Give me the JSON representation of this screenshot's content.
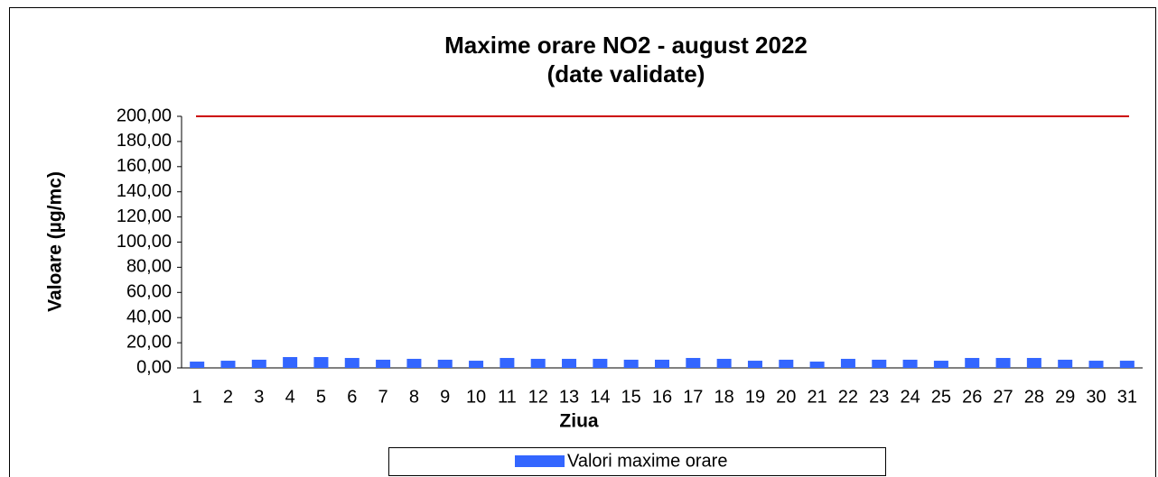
{
  "chart_data": {
    "type": "bar",
    "title": "Maxime orare NO2 -  august 2022",
    "subtitle": "(date validate)",
    "x_label": "Ziua",
    "y_label": "Valoare (µg/mc)",
    "categories": [
      "1",
      "2",
      "3",
      "4",
      "5",
      "6",
      "7",
      "8",
      "9",
      "10",
      "11",
      "12",
      "13",
      "14",
      "15",
      "16",
      "17",
      "18",
      "19",
      "20",
      "21",
      "22",
      "23",
      "24",
      "25",
      "26",
      "27",
      "28",
      "29",
      "30",
      "31"
    ],
    "series": [
      {
        "name": "Valori maxime orare",
        "color": "#3366ff",
        "values": [
          5.0,
          5.7,
          6.5,
          8.6,
          8.6,
          7.9,
          6.5,
          7.2,
          6.5,
          5.7,
          7.9,
          7.2,
          7.2,
          7.2,
          6.5,
          6.5,
          7.9,
          7.2,
          5.7,
          6.5,
          5.0,
          7.2,
          6.5,
          6.5,
          5.7,
          7.9,
          7.9,
          7.9,
          6.5,
          5.7,
          5.7
        ]
      }
    ],
    "reference_line": {
      "value": 200,
      "color": "#cc0000"
    },
    "ylim": [
      0,
      200
    ],
    "yticks": [
      {
        "value": 0,
        "label": "0,00"
      },
      {
        "value": 20,
        "label": "20,00"
      },
      {
        "value": 40,
        "label": "40,00"
      },
      {
        "value": 60,
        "label": "60,00"
      },
      {
        "value": 80,
        "label": "80,00"
      },
      {
        "value": 100,
        "label": "100,00"
      },
      {
        "value": 120,
        "label": "120,00"
      },
      {
        "value": 140,
        "label": "140,00"
      },
      {
        "value": 160,
        "label": "160,00"
      },
      {
        "value": 180,
        "label": "180,00"
      },
      {
        "value": 200,
        "label": "200,00"
      }
    ],
    "legend": "bottom",
    "grid": false
  }
}
